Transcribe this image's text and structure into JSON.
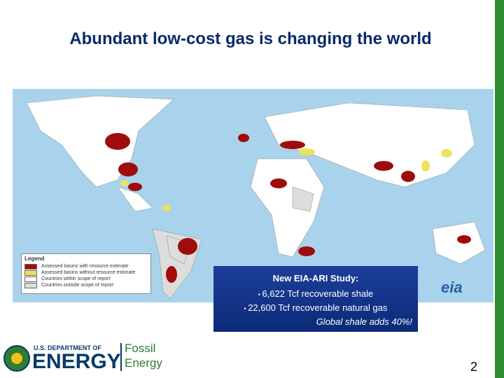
{
  "title": "Abundant low-cost gas is changing the world",
  "legend": {
    "title": "Legend",
    "items": [
      "Assessed basins with resource estimate",
      "Assessed basins without resource estimate",
      "Countries within scope of report",
      "Countries outside scope of report"
    ]
  },
  "study": {
    "heading": "New EIA-ARI Study:",
    "bullets": [
      "6,622 Tcf recoverable shale",
      "22,600 Tcf recoverable natural gas"
    ],
    "note": "Global shale adds 40%!"
  },
  "map_logo": "eia",
  "footer": {
    "department": "U.S. DEPARTMENT OF",
    "energy": "ENERGY",
    "office_line1": "Fossil",
    "office_line2": "Energy"
  },
  "page_number": 2
}
